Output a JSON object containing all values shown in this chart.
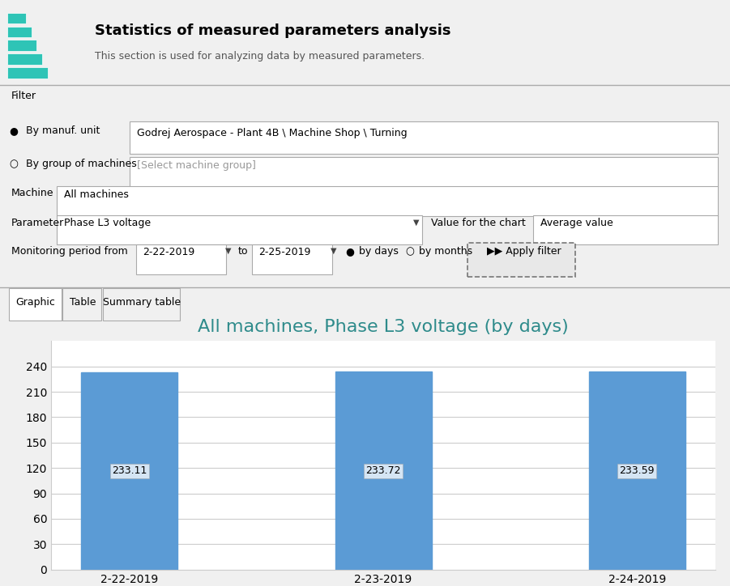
{
  "title": "All machines, Phase L3 voltage (by days)",
  "title_color": "#2E8B8B",
  "categories": [
    "2-22-2019",
    "2-23-2019",
    "2-24-2019"
  ],
  "values": [
    233.11,
    233.72,
    233.59
  ],
  "bar_color": "#5B9BD5",
  "ylim": [
    0,
    270
  ],
  "yticks": [
    0,
    30,
    60,
    90,
    120,
    150,
    180,
    210,
    240
  ],
  "grid_color": "#CCCCCC",
  "bg_color": "#FFFFFF",
  "outer_bg": "#F0F0F0",
  "label_fontsize": 10,
  "title_fontsize": 16,
  "value_label_fontsize": 9,
  "header_title": "Statistics of measured parameters analysis",
  "header_subtitle": "This section is used for analyzing data by measured parameters.",
  "filter_label": "Filter",
  "manuf_unit_label": "By manuf. unit",
  "manuf_unit_value": "Godrej Aerospace - Plant 4B \\ Machine Shop \\ Turning",
  "group_label": "By group of machines",
  "group_value": "[Select machine group]",
  "machine_label": "Machine",
  "machine_value": "All machines",
  "parameter_label": "Parameter",
  "parameter_value": "Phase L3 voltage",
  "chart_value_label": "Value for the chart",
  "chart_value_value": "Average value",
  "monitoring_label": "Monitoring period from",
  "monitoring_from": "2-22-2019",
  "monitoring_to": "2-25-2019",
  "tab_graphic": "Graphic",
  "tab_table": "Table",
  "tab_summary": "Summary table",
  "apply_filter": "Apply filter"
}
